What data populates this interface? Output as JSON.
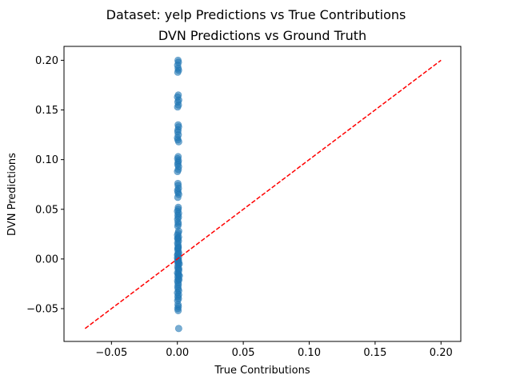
{
  "suptitle": "Dataset: yelp Predictions vs True Contributions",
  "chart_data": {
    "type": "scatter",
    "title": "DVN Predictions vs Ground Truth",
    "xlabel": "True Contributions",
    "ylabel": "DVN Predictions",
    "xlim": [
      -0.086,
      0.215
    ],
    "ylim": [
      -0.083,
      0.214
    ],
    "xticks": [
      -0.05,
      0.0,
      0.05,
      0.1,
      0.15,
      0.2
    ],
    "xtick_labels": [
      "−0.05",
      "0.00",
      "0.05",
      "0.10",
      "0.15",
      "0.20"
    ],
    "yticks": [
      -0.05,
      0.0,
      0.05,
      0.1,
      0.15,
      0.2
    ],
    "ytick_labels": [
      "−0.05",
      "0.00",
      "0.05",
      "0.10",
      "0.15",
      "0.20"
    ],
    "grid": false,
    "point_color": "#1f77b4",
    "point_alpha": 0.6,
    "series": [
      {
        "x": [
          0.0005,
          0.0008,
          0.0002,
          0.0006,
          0.0009,
          0.0003,
          0.0007,
          0.0001,
          0.001,
          0.0004,
          0.0008,
          0.0002,
          0.0006,
          0.0009,
          0.0005,
          0.0003,
          0.0007,
          0.0001,
          0.0004,
          0.001,
          0.0006,
          0.0002,
          0.0008,
          0.0005,
          0.0003,
          0.0009,
          0.0007,
          0.0001,
          0.0004,
          0.0006,
          0.0008,
          0.0002,
          0.0005,
          0.001,
          0.0003,
          0.0007,
          0.0006,
          0.0001,
          0.0009,
          0.0004,
          0.0008,
          0.0002,
          0.0005,
          0.0007,
          0.0003,
          0.001,
          0.0006,
          0.0001,
          0.0009,
          0.0004,
          0.0008,
          0.0002,
          0.0005,
          0.0007,
          0.0003,
          0.0006,
          0.001,
          0.0001,
          0.0009,
          0.0004,
          0.0008,
          0.0002,
          0.0005,
          0.0007,
          0.0003,
          0.0006,
          0.001,
          0.0001,
          0.0009,
          0.0004,
          0.0008,
          0.0002,
          0.0005,
          0.0007,
          0.0003,
          0.0006,
          0.001,
          0.0001,
          0.0009,
          0.0004,
          0.0008,
          0.0002,
          0.0005,
          0.0007,
          0.0003,
          0.0006,
          0.001,
          0.0001,
          0.0009,
          0.0004,
          0.0005,
          0.0007,
          0.0002,
          0.0012,
          0.0015,
          0.0011,
          0.0014
        ],
        "y": [
          0.2,
          0.198,
          0.195,
          0.192,
          0.19,
          0.188,
          0.165,
          0.163,
          0.16,
          0.158,
          0.155,
          0.153,
          0.135,
          0.133,
          0.13,
          0.128,
          0.125,
          0.122,
          0.12,
          0.118,
          0.103,
          0.101,
          0.099,
          0.097,
          0.095,
          0.093,
          0.09,
          0.088,
          0.076,
          0.074,
          0.071,
          0.069,
          0.067,
          0.065,
          0.062,
          0.052,
          0.05,
          0.048,
          0.046,
          0.044,
          0.042,
          0.04,
          0.037,
          0.035,
          0.033,
          0.028,
          0.026,
          0.024,
          0.022,
          0.02,
          0.018,
          0.016,
          0.014,
          0.012,
          0.01,
          0.008,
          0.006,
          0.004,
          0.002,
          0.0,
          -0.001,
          -0.002,
          -0.004,
          -0.006,
          -0.008,
          -0.01,
          -0.012,
          -0.014,
          -0.016,
          -0.018,
          -0.02,
          -0.022,
          -0.024,
          -0.026,
          -0.028,
          -0.03,
          -0.032,
          -0.034,
          -0.036,
          -0.038,
          -0.04,
          -0.042,
          -0.046,
          -0.048,
          -0.05,
          -0.052,
          -0.07,
          0.001,
          -0.003,
          0.005,
          0.011,
          -0.015,
          0.021,
          -0.021,
          -0.017,
          -0.01,
          -0.005
        ]
      }
    ],
    "reference_line": {
      "x": [
        -0.07,
        0.2
      ],
      "y": [
        -0.07,
        0.2
      ],
      "color": "#ff0000",
      "style": "dashed"
    }
  }
}
